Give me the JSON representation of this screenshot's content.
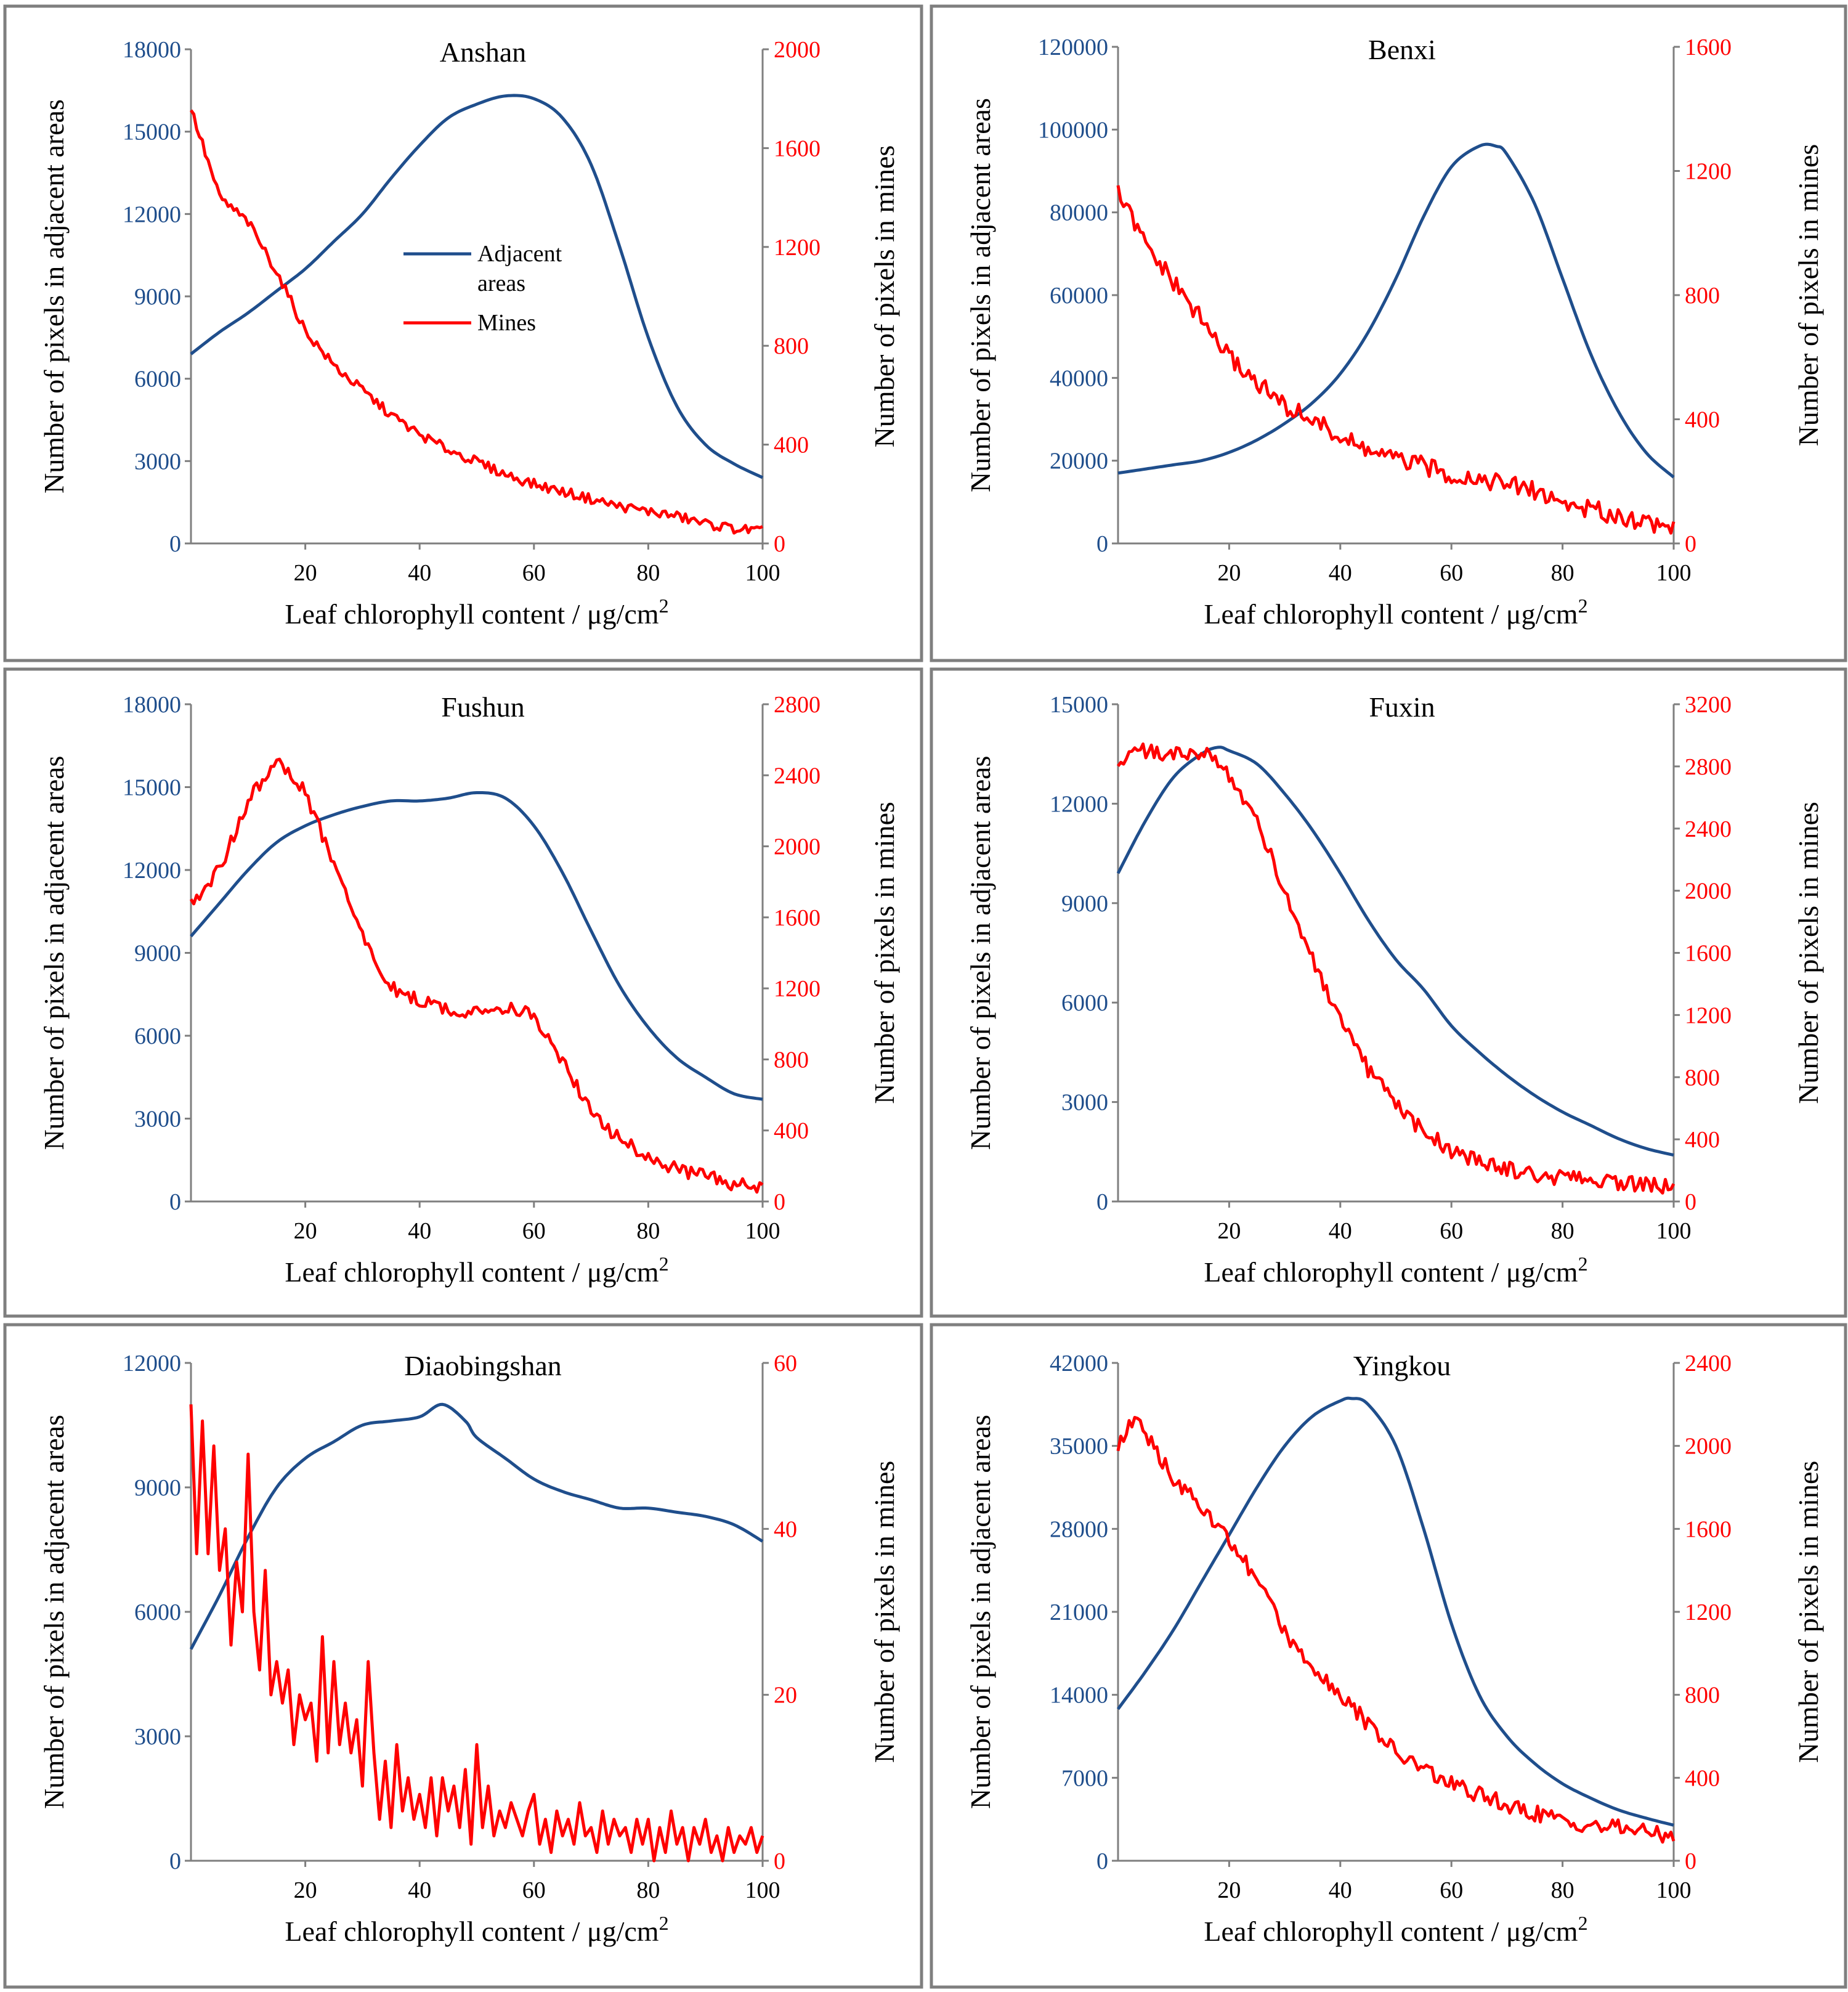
{
  "chart_data": [
    {
      "id": "anshan",
      "type": "line",
      "title": "Anshan",
      "xlabel": "Leaf chlorophyll content / μg/cm",
      "xlabel_sup": "2",
      "ylabel_left": "Number of pixels in adjacent areas",
      "ylabel_right": "Number of pixels in mines",
      "xlim": [
        0,
        100
      ],
      "x_ticks": [
        20,
        40,
        60,
        80,
        100
      ],
      "y_left_lim": [
        0,
        18000
      ],
      "y_left_ticks": [
        0,
        3000,
        6000,
        9000,
        12000,
        15000,
        18000
      ],
      "y_right_lim": [
        0,
        2000
      ],
      "y_right_ticks": [
        0,
        400,
        800,
        1200,
        1600,
        2000
      ],
      "legend": {
        "show": true,
        "entries": [
          "Adjacent areas",
          "Mines"
        ]
      },
      "series": [
        {
          "name": "Adjacent areas",
          "axis": "left",
          "color": "#1f4e8c",
          "x": [
            0,
            5,
            10,
            15,
            20,
            25,
            30,
            35,
            40,
            45,
            50,
            55,
            60,
            65,
            70,
            75,
            80,
            85,
            90,
            95,
            100
          ],
          "y": [
            6900,
            7700,
            8400,
            9200,
            10000,
            11000,
            12000,
            13300,
            14500,
            15500,
            16000,
            16300,
            16200,
            15500,
            13800,
            10800,
            7500,
            5000,
            3600,
            2900,
            2400
          ]
        },
        {
          "name": "Mines",
          "axis": "right",
          "color": "#ff0000",
          "noise": 10,
          "x": [
            0,
            5,
            10,
            15,
            20,
            25,
            30,
            35,
            40,
            45,
            50,
            55,
            60,
            65,
            70,
            75,
            80,
            85,
            90,
            95,
            100
          ],
          "y": [
            1760,
            1400,
            1300,
            1100,
            860,
            720,
            620,
            520,
            440,
            380,
            330,
            280,
            240,
            210,
            180,
            150,
            130,
            110,
            80,
            60,
            50
          ]
        }
      ]
    },
    {
      "id": "benxi",
      "type": "line",
      "title": "Benxi",
      "xlabel": "Leaf chlorophyll content / μg/cm",
      "xlabel_sup": "2",
      "ylabel_left": "Number of pixels in adjacent areas",
      "ylabel_right": "Number of pixels in mines",
      "xlim": [
        0,
        100
      ],
      "x_ticks": [
        20,
        40,
        60,
        80,
        100
      ],
      "y_left_lim": [
        0,
        120000
      ],
      "y_left_ticks": [
        0,
        20000,
        40000,
        60000,
        80000,
        100000,
        120000
      ],
      "y_right_lim": [
        0,
        1600
      ],
      "y_right_ticks": [
        0,
        400,
        800,
        1200,
        1600
      ],
      "legend": {
        "show": false,
        "entries": []
      },
      "series": [
        {
          "name": "Adjacent areas",
          "axis": "left",
          "color": "#1f4e8c",
          "x": [
            0,
            5,
            10,
            15,
            20,
            25,
            30,
            35,
            40,
            45,
            50,
            55,
            60,
            65,
            68,
            70,
            75,
            80,
            85,
            90,
            95,
            100
          ],
          "y": [
            17000,
            18000,
            19000,
            20000,
            22000,
            25000,
            29000,
            34000,
            41000,
            51000,
            64000,
            79000,
            91000,
            96000,
            96000,
            94000,
            82000,
            64000,
            46000,
            32000,
            22000,
            16000
          ]
        },
        {
          "name": "Mines",
          "axis": "right",
          "color": "#ff0000",
          "noise": 15,
          "x": [
            0,
            5,
            10,
            15,
            20,
            25,
            30,
            35,
            40,
            45,
            50,
            55,
            60,
            65,
            70,
            75,
            80,
            85,
            90,
            95,
            100
          ],
          "y": [
            1130,
            960,
            840,
            720,
            600,
            520,
            440,
            400,
            340,
            300,
            270,
            250,
            220,
            210,
            190,
            170,
            130,
            110,
            90,
            70,
            50
          ]
        }
      ]
    },
    {
      "id": "fushun",
      "type": "line",
      "title": "Fushun",
      "xlabel": "Leaf chlorophyll content / μg/cm",
      "xlabel_sup": "2",
      "ylabel_left": "Number of pixels in adjacent areas",
      "ylabel_right": "Number of pixels in mines",
      "xlim": [
        0,
        100
      ],
      "x_ticks": [
        20,
        40,
        60,
        80,
        100
      ],
      "y_left_lim": [
        0,
        18000
      ],
      "y_left_ticks": [
        0,
        3000,
        6000,
        9000,
        12000,
        15000,
        18000
      ],
      "y_right_lim": [
        0,
        2800
      ],
      "y_right_ticks": [
        0,
        400,
        800,
        1200,
        1600,
        2000,
        2400,
        2800
      ],
      "legend": {
        "show": false,
        "entries": []
      },
      "series": [
        {
          "name": "Adjacent areas",
          "axis": "left",
          "color": "#1f4e8c",
          "x": [
            0,
            5,
            10,
            15,
            20,
            25,
            30,
            35,
            40,
            45,
            50,
            55,
            60,
            65,
            70,
            75,
            80,
            85,
            90,
            95,
            100
          ],
          "y": [
            9600,
            10800,
            12000,
            13000,
            13600,
            14000,
            14300,
            14500,
            14500,
            14600,
            14800,
            14600,
            13600,
            11900,
            9800,
            7800,
            6300,
            5200,
            4500,
            3900,
            3700
          ]
        },
        {
          "name": "Mines",
          "axis": "right",
          "color": "#ff0000",
          "noise": 20,
          "x": [
            0,
            3,
            6,
            10,
            13,
            15,
            17,
            20,
            25,
            28,
            30,
            33,
            35,
            40,
            45,
            50,
            55,
            58,
            60,
            65,
            70,
            75,
            80,
            85,
            90,
            95,
            100
          ],
          "y": [
            1700,
            1750,
            1950,
            2250,
            2400,
            2480,
            2420,
            2300,
            1900,
            1650,
            1500,
            1300,
            1200,
            1130,
            1080,
            1060,
            1100,
            1080,
            1020,
            800,
            500,
            350,
            250,
            180,
            140,
            100,
            80
          ]
        }
      ]
    },
    {
      "id": "fuxin",
      "type": "line",
      "title": "Fuxin",
      "xlabel": "Leaf chlorophyll content / μg/cm",
      "xlabel_sup": "2",
      "ylabel_left": "Number of pixels in adjacent areas",
      "ylabel_right": "Number of pixels in mines",
      "xlim": [
        0,
        100
      ],
      "x_ticks": [
        20,
        40,
        60,
        80,
        100
      ],
      "y_left_lim": [
        0,
        15000
      ],
      "y_left_ticks": [
        0,
        3000,
        6000,
        9000,
        12000,
        15000
      ],
      "y_right_lim": [
        0,
        3200
      ],
      "y_right_ticks": [
        0,
        400,
        800,
        1200,
        1600,
        2000,
        2400,
        2800,
        3200
      ],
      "legend": {
        "show": false,
        "entries": []
      },
      "series": [
        {
          "name": "Adjacent areas",
          "axis": "left",
          "color": "#1f4e8c",
          "x": [
            0,
            5,
            10,
            15,
            18,
            20,
            25,
            30,
            35,
            40,
            45,
            50,
            55,
            60,
            65,
            70,
            75,
            80,
            85,
            90,
            95,
            100
          ],
          "y": [
            9900,
            11500,
            12800,
            13500,
            13700,
            13600,
            13200,
            12300,
            11200,
            9900,
            8500,
            7300,
            6400,
            5300,
            4500,
            3800,
            3200,
            2700,
            2300,
            1900,
            1600,
            1400
          ]
        },
        {
          "name": "Mines",
          "axis": "right",
          "color": "#ff0000",
          "noise": 25,
          "x": [
            0,
            3,
            5,
            10,
            15,
            20,
            25,
            30,
            35,
            40,
            45,
            50,
            55,
            60,
            65,
            70,
            75,
            80,
            85,
            90,
            95,
            100
          ],
          "y": [
            2800,
            2930,
            2900,
            2870,
            2900,
            2750,
            2450,
            2000,
            1550,
            1150,
            850,
            620,
            450,
            330,
            260,
            210,
            170,
            150,
            140,
            120,
            110,
            90
          ]
        }
      ]
    },
    {
      "id": "diaobingshan",
      "type": "line",
      "title": "Diaobingshan",
      "xlabel": "Leaf chlorophyll content / μg/cm",
      "xlabel_sup": "2",
      "ylabel_left": "Number of pixels in adjacent areas",
      "ylabel_right": "Number of pixels in mines",
      "xlim": [
        0,
        100
      ],
      "x_ticks": [
        20,
        40,
        60,
        80,
        100
      ],
      "y_left_lim": [
        0,
        12000
      ],
      "y_left_ticks": [
        0,
        3000,
        6000,
        9000,
        12000
      ],
      "y_right_lim": [
        0,
        60
      ],
      "y_right_ticks": [
        0,
        20,
        40,
        60
      ],
      "legend": {
        "show": false,
        "entries": []
      },
      "series": [
        {
          "name": "Adjacent areas",
          "axis": "left",
          "color": "#1f4e8c",
          "x": [
            0,
            5,
            10,
            15,
            20,
            25,
            30,
            35,
            40,
            44,
            48,
            50,
            55,
            60,
            65,
            70,
            75,
            80,
            85,
            90,
            95,
            100
          ],
          "y": [
            5100,
            6400,
            7800,
            9000,
            9700,
            10100,
            10500,
            10600,
            10700,
            11000,
            10600,
            10200,
            9700,
            9200,
            8900,
            8700,
            8500,
            8500,
            8400,
            8300,
            8100,
            7700
          ]
        },
        {
          "name": "Mines",
          "axis": "right",
          "color": "#ff0000",
          "noise": 0,
          "x": [
            0,
            1,
            2,
            3,
            4,
            5,
            6,
            7,
            8,
            9,
            10,
            11,
            12,
            13,
            14,
            15,
            16,
            17,
            18,
            19,
            20,
            21,
            22,
            23,
            24,
            25,
            26,
            27,
            28,
            29,
            30,
            31,
            32,
            33,
            34,
            35,
            36,
            37,
            38,
            39,
            40,
            41,
            42,
            43,
            44,
            45,
            46,
            47,
            48,
            49,
            50,
            51,
            52,
            53,
            54,
            55,
            56,
            57,
            58,
            59,
            60,
            61,
            62,
            63,
            64,
            65,
            66,
            67,
            68,
            69,
            70,
            71,
            72,
            73,
            74,
            75,
            76,
            77,
            78,
            79,
            80,
            81,
            82,
            83,
            84,
            85,
            86,
            87,
            88,
            89,
            90,
            91,
            92,
            93,
            94,
            95,
            96,
            97,
            98,
            99,
            100
          ],
          "y": [
            55,
            37,
            53,
            37,
            50,
            35,
            40,
            26,
            36,
            30,
            49,
            30,
            23,
            35,
            20,
            24,
            19,
            23,
            14,
            20,
            17,
            19,
            12,
            27,
            13,
            24,
            14,
            19,
            13,
            17,
            9,
            24,
            13,
            5,
            12,
            4,
            14,
            6,
            10,
            5,
            8,
            4,
            10,
            3,
            10,
            6,
            9,
            4,
            11,
            2,
            14,
            4,
            9,
            3,
            6,
            4,
            7,
            5,
            3,
            6,
            8,
            2,
            5,
            1,
            6,
            3,
            5,
            2,
            7,
            3,
            4,
            1,
            6,
            2,
            5,
            3,
            4,
            1,
            5,
            2,
            5,
            0,
            4,
            1,
            6,
            2,
            4,
            0,
            4,
            2,
            5,
            1,
            3,
            0,
            4,
            1,
            3,
            2,
            4,
            1,
            3
          ]
        }
      ]
    },
    {
      "id": "yingkou",
      "type": "line",
      "title": "Yingkou",
      "xlabel": "Leaf chlorophyll content / μg/cm",
      "xlabel_sup": "2",
      "ylabel_left": "Number of pixels in adjacent areas",
      "ylabel_right": "Number of pixels in mines",
      "xlim": [
        0,
        100
      ],
      "x_ticks": [
        20,
        40,
        60,
        80,
        100
      ],
      "y_left_lim": [
        0,
        42000
      ],
      "y_left_ticks": [
        0,
        7000,
        14000,
        21000,
        28000,
        35000,
        42000
      ],
      "y_right_lim": [
        0,
        2400
      ],
      "y_right_ticks": [
        0,
        400,
        800,
        1200,
        1600,
        2000,
        2400
      ],
      "legend": {
        "show": false,
        "entries": []
      },
      "series": [
        {
          "name": "Adjacent areas",
          "axis": "left",
          "color": "#1f4e8c",
          "x": [
            0,
            5,
            10,
            15,
            20,
            25,
            30,
            35,
            40,
            42,
            45,
            50,
            55,
            60,
            65,
            70,
            75,
            80,
            85,
            90,
            95,
            100
          ],
          "y": [
            12800,
            16000,
            19500,
            23500,
            27500,
            31500,
            35000,
            37500,
            38800,
            39000,
            38500,
            35000,
            28000,
            20000,
            14000,
            10500,
            8200,
            6500,
            5300,
            4300,
            3600,
            3000
          ]
        },
        {
          "name": "Mines",
          "axis": "right",
          "color": "#ff0000",
          "noise": 20,
          "x": [
            0,
            3,
            5,
            10,
            15,
            20,
            25,
            30,
            35,
            40,
            45,
            50,
            55,
            60,
            65,
            70,
            75,
            80,
            85,
            90,
            95,
            100
          ],
          "y": [
            2000,
            2130,
            2050,
            1850,
            1700,
            1550,
            1350,
            1100,
            950,
            800,
            660,
            520,
            440,
            370,
            320,
            270,
            230,
            190,
            170,
            160,
            140,
            120
          ]
        }
      ]
    }
  ]
}
